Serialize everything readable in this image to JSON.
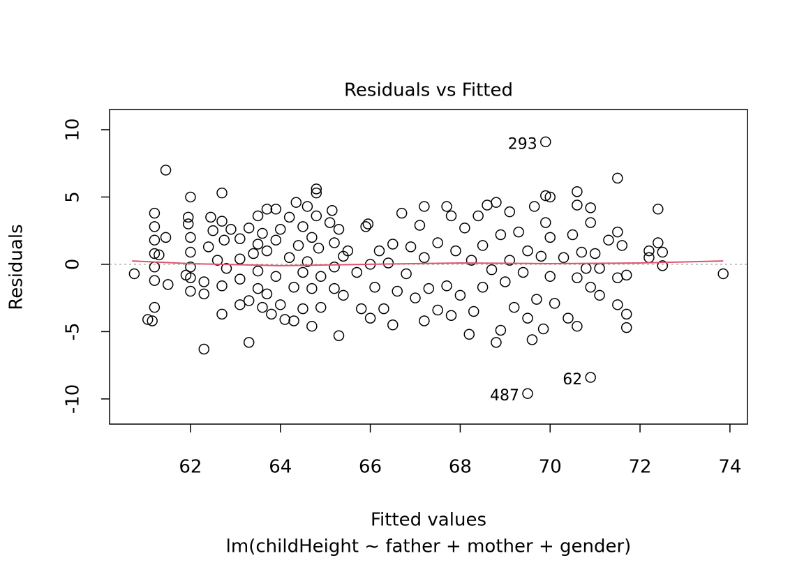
{
  "chart_data": {
    "type": "scatter",
    "title": "Residuals vs Fitted",
    "x_label": "Fitted values",
    "subtitle": "lm(childHeight ~ father + mother + gender)",
    "y_label": "Residuals",
    "x": [
      60.75,
      61.05,
      61.15,
      61.2,
      61.2,
      61.2,
      61.2,
      61.2,
      61.2,
      61.2,
      61.3,
      61.45,
      61.5,
      61.45,
      61.95,
      62.0,
      61.95,
      62.0,
      62.0,
      62.0,
      62.0,
      62.0,
      61.9,
      62.3,
      62.3,
      62.3,
      62.4,
      62.45,
      62.5,
      62.6,
      62.7,
      62.7,
      62.7,
      62.7,
      62.75,
      62.8,
      62.9,
      63.1,
      63.1,
      63.1,
      63.1,
      63.3,
      63.3,
      63.3,
      63.4,
      63.5,
      63.5,
      63.5,
      63.5,
      63.6,
      63.6,
      63.7,
      63.7,
      63.7,
      63.8,
      63.9,
      63.9,
      63.9,
      64.0,
      64.0,
      64.1,
      64.2,
      64.2,
      64.3,
      64.3,
      64.35,
      64.4,
      64.5,
      64.5,
      64.5,
      64.6,
      64.6,
      64.7,
      64.7,
      64.7,
      64.8,
      64.8,
      64.8,
      64.85,
      64.9,
      64.9,
      65.1,
      65.15,
      65.2,
      65.2,
      65.2,
      65.3,
      65.3,
      65.4,
      65.4,
      65.5,
      65.7,
      65.8,
      65.9,
      65.95,
      66.0,
      66.0,
      66.1,
      66.2,
      66.3,
      66.4,
      66.5,
      66.5,
      66.6,
      66.7,
      66.8,
      66.9,
      67.0,
      67.1,
      67.2,
      67.2,
      67.2,
      67.3,
      67.5,
      67.5,
      67.7,
      67.7,
      67.8,
      67.8,
      67.9,
      68.0,
      68.1,
      68.2,
      68.25,
      68.3,
      68.4,
      68.5,
      68.5,
      68.6,
      68.7,
      68.8,
      68.8,
      68.9,
      68.9,
      69.0,
      69.1,
      69.1,
      69.2,
      69.3,
      69.4,
      69.5,
      69.5,
      69.6,
      69.65,
      69.7,
      69.8,
      69.85,
      69.9,
      69.9,
      70.0,
      70.0,
      70.0,
      70.1,
      70.3,
      70.4,
      70.5,
      70.6,
      70.6,
      70.6,
      70.6,
      70.7,
      70.8,
      70.9,
      70.9,
      70.9,
      71.0,
      71.1,
      71.1,
      71.3,
      71.5,
      71.5,
      71.5,
      71.5,
      71.6,
      71.7,
      71.7,
      71.7,
      72.2,
      72.2,
      72.4,
      72.4,
      72.5,
      72.5,
      73.85
    ],
    "values": [
      -0.7,
      -4.1,
      -4.2,
      3.8,
      2.8,
      1.8,
      0.8,
      -0.2,
      -1.2,
      -3.2,
      0.7,
      7.0,
      -1.5,
      2.0,
      3.5,
      5.0,
      3.0,
      2.0,
      0.9,
      -0.2,
      -1.0,
      -2.0,
      -0.8,
      -1.3,
      -2.2,
      -6.3,
      1.3,
      3.5,
      2.5,
      0.3,
      5.3,
      3.2,
      -1.6,
      -3.7,
      1.8,
      -0.3,
      2.6,
      1.9,
      0.4,
      -1.1,
      -3.0,
      2.7,
      -5.8,
      -2.7,
      0.8,
      3.6,
      1.5,
      -0.5,
      -1.8,
      2.3,
      -3.2,
      4.1,
      1.0,
      -2.2,
      -3.7,
      4.1,
      1.8,
      -0.9,
      2.6,
      -3.0,
      -4.1,
      3.5,
      0.5,
      -1.7,
      -4.2,
      4.6,
      1.4,
      2.8,
      -0.6,
      -3.3,
      4.3,
      0.2,
      2.0,
      -1.8,
      -4.6,
      5.6,
      5.3,
      3.6,
      1.2,
      -0.9,
      -3.2,
      3.1,
      4.0,
      1.6,
      -0.2,
      -1.8,
      2.6,
      -5.3,
      0.6,
      -2.3,
      1.0,
      -0.6,
      -3.3,
      2.8,
      3.0,
      0.0,
      -4.0,
      -1.7,
      1.0,
      -3.3,
      0.1,
      1.5,
      -4.5,
      -2.0,
      3.8,
      -0.7,
      1.3,
      -2.5,
      2.9,
      4.3,
      -4.2,
      0.5,
      -1.8,
      1.6,
      -3.4,
      4.3,
      -1.6,
      3.6,
      -3.8,
      1.0,
      -2.3,
      2.7,
      -5.2,
      0.3,
      -3.5,
      3.6,
      1.4,
      -1.7,
      4.4,
      -0.4,
      -5.8,
      4.6,
      2.2,
      -4.9,
      -1.3,
      3.9,
      0.3,
      -3.2,
      2.4,
      -0.6,
      1.0,
      -4.0,
      -5.6,
      4.3,
      -2.6,
      0.6,
      -4.8,
      5.1,
      3.1,
      -0.9,
      2.0,
      5.0,
      -2.9,
      0.5,
      -4.0,
      2.2,
      -1.0,
      5.4,
      4.4,
      -4.6,
      0.9,
      -0.3,
      4.2,
      3.1,
      -1.7,
      0.8,
      -0.3,
      -2.3,
      1.8,
      6.4,
      2.4,
      -3.0,
      -1.0,
      1.4,
      -3.7,
      -4.7,
      -0.8,
      1.0,
      0.5,
      4.1,
      1.6,
      0.9,
      -0.1,
      -0.7
    ],
    "labeled_points": [
      {
        "text": "293",
        "x": 69.9,
        "y": 9.1
      },
      {
        "text": "62",
        "x": 70.9,
        "y": -8.4
      },
      {
        "text": "487",
        "x": 69.5,
        "y": -9.6
      }
    ],
    "smooth": {
      "color": "#df536b",
      "x": [
        60.7,
        62,
        64,
        66,
        68,
        70,
        72,
        73.85
      ],
      "values": [
        0.25,
        0.05,
        -0.1,
        0.0,
        0.1,
        0.05,
        0.1,
        0.25
      ]
    },
    "reference_line": 0,
    "xlim": [
      60.2,
      74.39
    ],
    "ylim": [
      -11.87,
      11.5
    ],
    "xticks": [
      62,
      64,
      66,
      68,
      70,
      72,
      74
    ],
    "yticks": [
      -10,
      -5,
      0,
      5,
      10
    ]
  }
}
